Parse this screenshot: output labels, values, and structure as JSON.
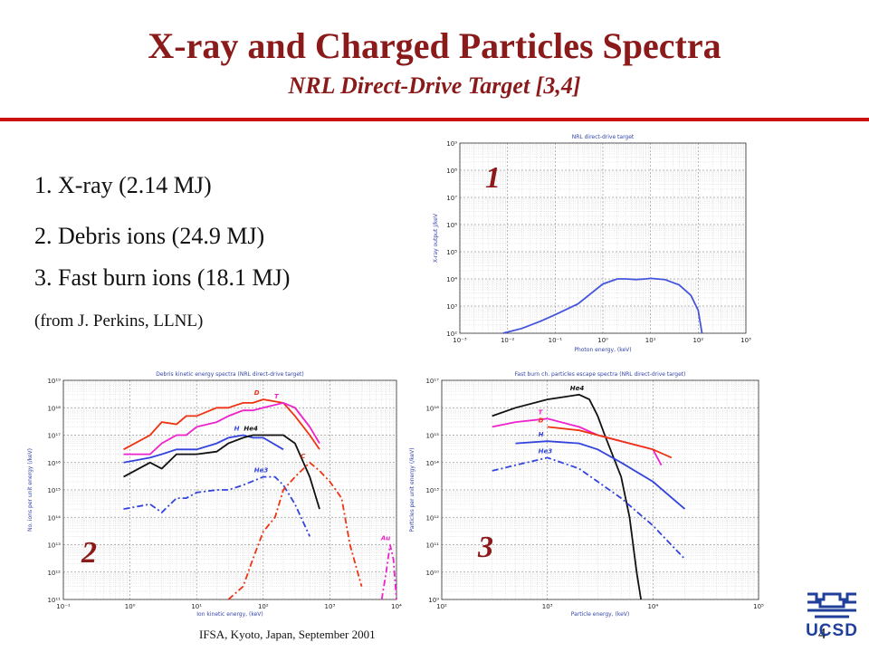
{
  "slide": {
    "title": "X-ray and Charged Particles Spectra",
    "subtitle": "NRL Direct-Drive Target [3,4]",
    "items": [
      "1. X-ray (2.14 MJ)",
      "2. Debris ions (24.9 MJ)",
      "3. Fast burn ions (18.1 MJ)"
    ],
    "note": "(from J. Perkins, LLNL)",
    "footer": "IFSA, Kyoto, Japan, September 2001",
    "page_number": "4",
    "logo_text": "UCSD"
  },
  "colors": {
    "title": "#8b1a1a",
    "rule": "#cc1111",
    "logo": "#1f3f9a"
  },
  "chart_data": [
    {
      "type": "line",
      "tag": "1",
      "title": "NRL direct-drive target",
      "xlabel": "Photon energy, (keV)",
      "ylabel": "X-ray output J/keV",
      "x_log": true,
      "y_log": true,
      "xlim": [
        0.001,
        1000
      ],
      "ylim": [
        100,
        1000000000
      ],
      "xticks": [
        "10⁻³",
        "10⁻²",
        "10⁻¹",
        "10⁰",
        "10¹",
        "10²",
        "10³"
      ],
      "yticks": [
        "10²",
        "10³",
        "10⁴",
        "10⁵",
        "10⁶",
        "10⁷",
        "10⁸",
        "10⁹"
      ],
      "grid": true,
      "series": [
        {
          "name": "",
          "color": "#4455dd",
          "dash": "",
          "x": [
            0.008,
            0.02,
            0.05,
            0.1,
            0.3,
            1,
            2,
            3,
            5,
            8,
            10,
            20,
            40,
            70,
            100,
            120
          ],
          "y": [
            100,
            150,
            280,
            480,
            1200,
            6500,
            10000,
            10000,
            9500,
            10000,
            10500,
            9500,
            6000,
            2500,
            700,
            100
          ]
        }
      ]
    },
    {
      "type": "line",
      "tag": "2",
      "title": "Debris kinetic energy spectra (NRL direct-drive target)",
      "xlabel": "Ion kinetic energy, (keV)",
      "ylabel": "No. ions per unit energy (/keV)",
      "x_log": true,
      "y_log": true,
      "xlim": [
        0.1,
        10000
      ],
      "ylim": [
        100000000000,
        10000000000000000000
      ],
      "xticks": [
        "10⁻¹",
        "10⁰",
        "10¹",
        "10²",
        "10³",
        "10⁴"
      ],
      "yticks": [
        "10¹¹",
        "10¹²",
        "10¹³",
        "10¹⁴",
        "10¹⁵",
        "10¹⁶",
        "10¹⁷",
        "10¹⁸",
        "10¹⁹"
      ],
      "grid": true,
      "series": [
        {
          "name": "D",
          "color": "#ee3311",
          "dash": "",
          "x": [
            0.8,
            2,
            3,
            5,
            7,
            10,
            20,
            30,
            50,
            70,
            100,
            200,
            300,
            500,
            700
          ],
          "y": [
            3e+16,
            1e+17,
            3e+17,
            2.5e+17,
            5e+17,
            5e+17,
            1e+18,
            1e+18,
            1.5e+18,
            1.5e+18,
            2e+18,
            1.5e+18,
            5e+17,
            1e+17,
            3e+16
          ]
        },
        {
          "name": "T",
          "color": "#ee22cc",
          "dash": "",
          "x": [
            0.8,
            2,
            3,
            5,
            7,
            10,
            20,
            30,
            50,
            70,
            100,
            200,
            300,
            500,
            700
          ],
          "y": [
            2e+16,
            2e+16,
            5e+16,
            1e+17,
            1e+17,
            2e+17,
            3e+17,
            5e+17,
            8e+17,
            8e+17,
            1e+18,
            1.5e+18,
            1e+18,
            2e+17,
            5e+16
          ]
        },
        {
          "name": "H",
          "color": "#3344dd",
          "dash": "",
          "x": [
            0.8,
            2,
            3,
            5,
            7,
            10,
            20,
            30,
            50,
            70,
            100,
            200
          ],
          "y": [
            1e+16,
            1.5e+16,
            2e+16,
            3e+16,
            3e+16,
            3e+16,
            5e+16,
            8e+16,
            1e+17,
            8e+16,
            8e+16,
            3e+16
          ]
        },
        {
          "name": "He4",
          "color": "#111111",
          "dash": "",
          "x": [
            0.8,
            2,
            3,
            5,
            7,
            10,
            20,
            30,
            50,
            70,
            100,
            200,
            300,
            500,
            700
          ],
          "y": [
            3000000000000000.0,
            1e+16,
            6000000000000000.0,
            2e+16,
            2e+16,
            2e+16,
            2.5e+16,
            5e+16,
            8e+16,
            1e+17,
            1e+17,
            1e+17,
            5e+16,
            3000000000000000.0,
            200000000000000.0
          ]
        },
        {
          "name": "He3",
          "color": "#3344dd",
          "dash": "7,3,2,3",
          "x": [
            0.8,
            2,
            3,
            5,
            7,
            10,
            20,
            30,
            50,
            100,
            150,
            200,
            300,
            500
          ],
          "y": [
            200000000000000.0,
            300000000000000.0,
            150000000000000.0,
            500000000000000.0,
            500000000000000.0,
            800000000000000.0,
            1000000000000000.0,
            1000000000000000.0,
            1500000000000000.0,
            3000000000000000.0,
            3000000000000000.0,
            1500000000000000.0,
            300000000000000.0,
            20000000000000.0
          ]
        },
        {
          "name": "C",
          "color": "#ee3311",
          "dash": "7,3,2,3",
          "x": [
            30,
            50,
            70,
            100,
            150,
            200,
            300,
            500,
            700,
            1000,
            1500,
            2000,
            3000
          ],
          "y": [
            100000000000.0,
            300000000000.0,
            3000000000000.0,
            30000000000000.0,
            100000000000000.0,
            1000000000000000.0,
            3000000000000000.0,
            1e+16,
            5000000000000000.0,
            2000000000000000.0,
            500000000000000.0,
            10000000000000.0,
            300000000000.0
          ]
        },
        {
          "name": "Au",
          "color": "#ee22cc",
          "dash": "7,3,2,3",
          "x": [
            6000,
            7000,
            8000,
            9000,
            10000
          ],
          "y": [
            100000000000.0,
            1000000000000.0,
            10000000000000.0,
            3000000000000.0,
            100000000000.0
          ]
        }
      ]
    },
    {
      "type": "line",
      "tag": "3",
      "title": "Fast burn ch. particles escape spectra (NRL direct-drive target)",
      "xlabel": "Particle energy, (keV)",
      "ylabel": "Particles per unit energy (/keV)",
      "x_log": true,
      "y_log": true,
      "xlim": [
        100,
        100000
      ],
      "ylim": [
        1000000000,
        100000000000000000
      ],
      "xticks": [
        "10²",
        "10³",
        "10⁴",
        "10⁵"
      ],
      "yticks": [
        "10⁹",
        "10¹⁰",
        "10¹¹",
        "10¹²",
        "10¹³",
        "10¹⁴",
        "10¹⁵",
        "10¹⁶",
        "10¹⁷"
      ],
      "grid": true,
      "series": [
        {
          "name": "He4",
          "color": "#111111",
          "dash": "",
          "x": [
            300,
            500,
            1000,
            2000,
            2500,
            3000,
            3500,
            5000,
            6000,
            7000,
            7700
          ],
          "y": [
            5000000000000000.0,
            1e+16,
            2e+16,
            3e+16,
            2e+16,
            5000000000000000.0,
            1000000000000000.0,
            30000000000000.0,
            1000000000000.0,
            10000000000.0,
            1000000000.0
          ]
        },
        {
          "name": "T",
          "color": "#ee22cc",
          "dash": "",
          "x": [
            300,
            500,
            1000,
            2000,
            3000,
            5000,
            10000,
            12000
          ],
          "y": [
            2000000000000000.0,
            3000000000000000.0,
            4000000000000000.0,
            2000000000000000.0,
            1000000000000000.0,
            600000000000000.0,
            300000000000000.0,
            80000000000000.0
          ]
        },
        {
          "name": "D",
          "color": "#ee3311",
          "dash": "",
          "x": [
            1000,
            2000,
            3000,
            5000,
            10000,
            15000
          ],
          "y": [
            2000000000000000.0,
            1500000000000000.0,
            1000000000000000.0,
            600000000000000.0,
            300000000000000.0,
            150000000000000.0
          ]
        },
        {
          "name": "H",
          "color": "#3344dd",
          "dash": "",
          "x": [
            500,
            1000,
            2000,
            3000,
            5000,
            10000,
            20000
          ],
          "y": [
            500000000000000.0,
            600000000000000.0,
            500000000000000.0,
            300000000000000.0,
            100000000000000.0,
            20000000000000.0,
            2000000000000.0
          ]
        },
        {
          "name": "He3",
          "color": "#3344dd",
          "dash": "7,3,2,3",
          "x": [
            300,
            500,
            1000,
            2000,
            3000,
            5000,
            10000,
            20000
          ],
          "y": [
            50000000000000.0,
            80000000000000.0,
            150000000000000.0,
            60000000000000.0,
            20000000000000.0,
            5000000000000.0,
            500000000000.0,
            30000000000.0
          ]
        }
      ]
    }
  ]
}
